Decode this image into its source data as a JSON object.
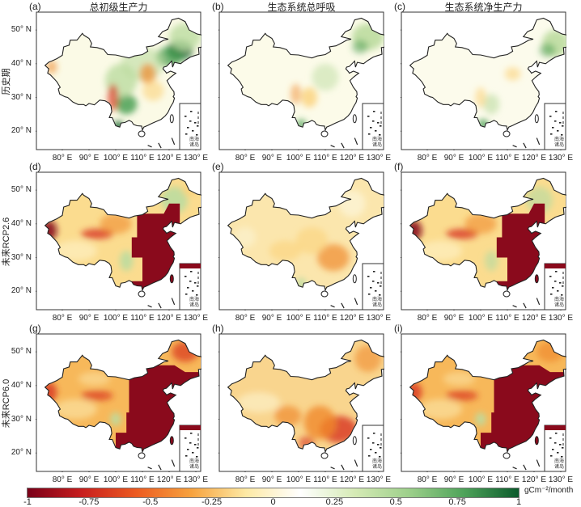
{
  "columns": [
    {
      "title": "总初级生产力"
    },
    {
      "title": "生态系统总呼吸"
    },
    {
      "title": "生态系统净生产力"
    }
  ],
  "rows": [
    {
      "label": "历史期"
    },
    {
      "label": "未来RCP2.6"
    },
    {
      "label": "未来RCP6.0"
    }
  ],
  "panels": [
    "(a)",
    "(b)",
    "(c)",
    "(d)",
    "(e)",
    "(f)",
    "(g)",
    "(h)",
    "(i)"
  ],
  "lat_ticks": [
    "50° N",
    "40° N",
    "30° N",
    "20° N"
  ],
  "lon_ticks": [
    "80° E",
    "90° E",
    "100° E",
    "110° E",
    "120° E",
    "130° E"
  ],
  "inset_label": [
    "南海",
    "诸岛"
  ],
  "colorbar": {
    "ticks": [
      "-1",
      "-0.75",
      "-0.5",
      "-0.25",
      "0",
      "0.25",
      "0.5",
      "0.75",
      "1"
    ],
    "unit": "gCm⁻²/month",
    "colors": [
      "#7a0019",
      "#c81e1e",
      "#ec5b21",
      "#f7a23e",
      "#fde9a4",
      "#ffffff",
      "#d5eab5",
      "#9ccf8a",
      "#4ea35a",
      "#0b5a2c"
    ]
  }
}
